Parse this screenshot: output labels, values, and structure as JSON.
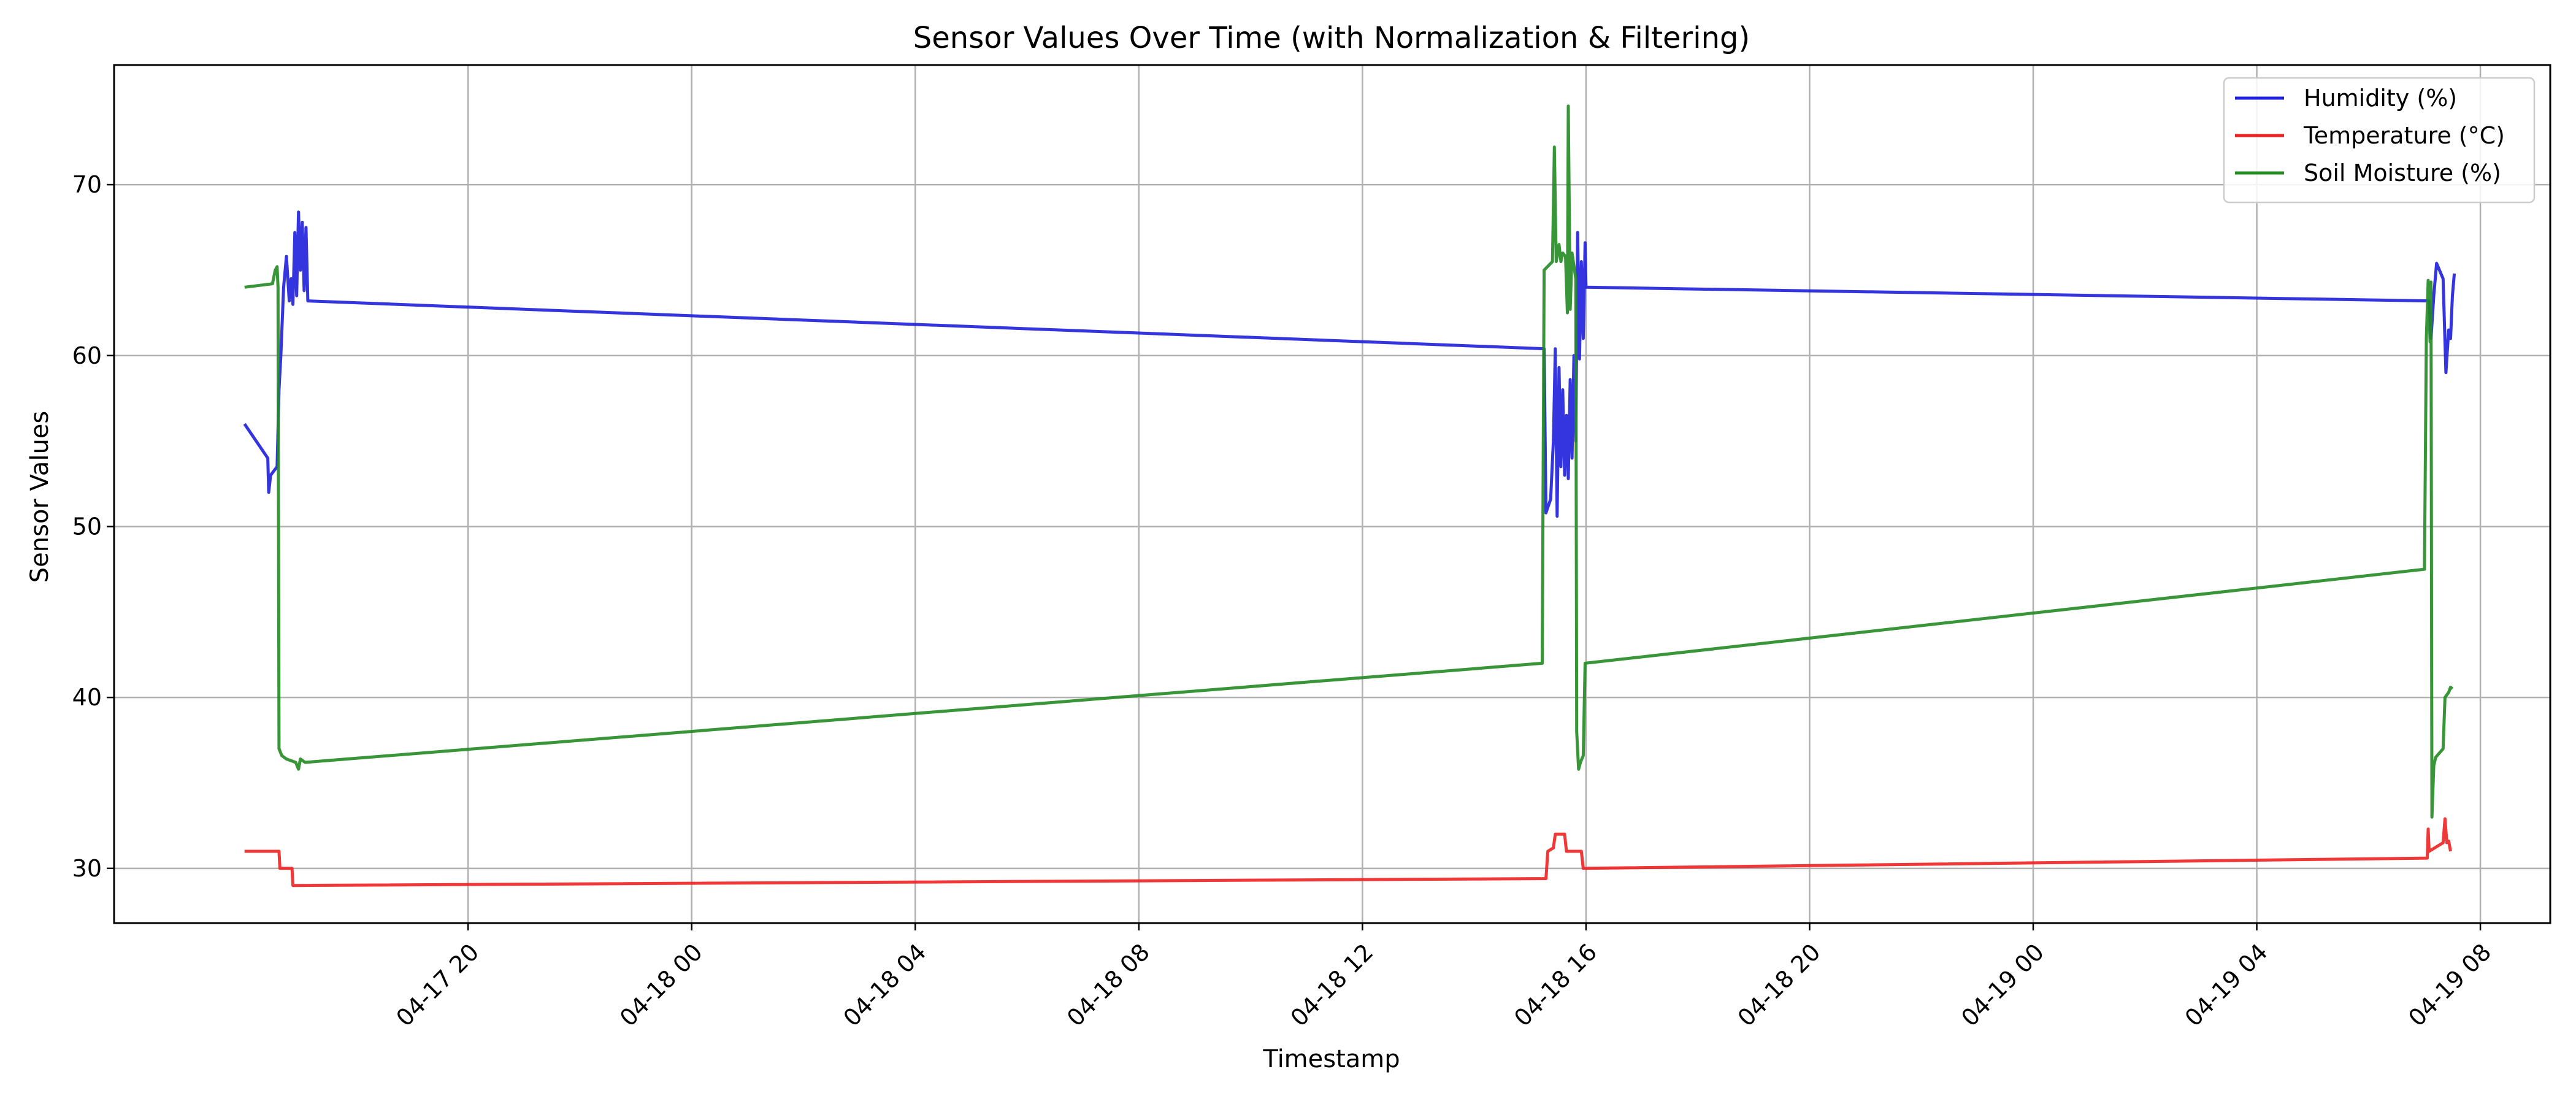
{
  "chart_data": {
    "type": "line",
    "title": "Sensor Values Over Time (with Normalization & Filtering)",
    "xlabel": "Timestamp",
    "ylabel": "Sensor Values",
    "xlim": [
      "2024-04-17 13:40",
      "2024-04-19 09:15"
    ],
    "ylim": [
      26.8,
      77
    ],
    "x_ticks": [
      "04-17 20",
      "04-18 00",
      "04-18 04",
      "04-18 08",
      "04-18 12",
      "04-18 16",
      "04-18 20",
      "04-19 00",
      "04-19 04",
      "04-19 08"
    ],
    "y_ticks": [
      30,
      40,
      50,
      60,
      70
    ],
    "grid": true,
    "legend_position": "top-right",
    "series": [
      {
        "name": "Humidity (%)",
        "color": "#1f1fdd",
        "points": [
          [
            "2024-04-17 16:00",
            56.0
          ],
          [
            "2024-04-17 16:25",
            54.0
          ],
          [
            "2024-04-17 16:26",
            52.0
          ],
          [
            "2024-04-17 16:28",
            53.0
          ],
          [
            "2024-04-17 16:35",
            53.5
          ],
          [
            "2024-04-17 16:37",
            58.0
          ],
          [
            "2024-04-17 16:39",
            60.0
          ],
          [
            "2024-04-17 16:42",
            64.0
          ],
          [
            "2024-04-17 16:45",
            65.8
          ],
          [
            "2024-04-17 16:48",
            63.2
          ],
          [
            "2024-04-17 16:50",
            64.5
          ],
          [
            "2024-04-17 16:52",
            63.0
          ],
          [
            "2024-04-17 16:54",
            67.2
          ],
          [
            "2024-04-17 16:56",
            63.5
          ],
          [
            "2024-04-17 16:58",
            68.4
          ],
          [
            "2024-04-17 17:00",
            65.0
          ],
          [
            "2024-04-17 17:02",
            67.8
          ],
          [
            "2024-04-17 17:04",
            63.8
          ],
          [
            "2024-04-17 17:06",
            67.5
          ],
          [
            "2024-04-17 17:08",
            63.2
          ],
          [
            "2024-04-18 15:15",
            60.4
          ],
          [
            "2024-04-18 15:17",
            50.8
          ],
          [
            "2024-04-18 15:22",
            51.6
          ],
          [
            "2024-04-18 15:25",
            55.0
          ],
          [
            "2024-04-18 15:27",
            60.4
          ],
          [
            "2024-04-18 15:29",
            50.6
          ],
          [
            "2024-04-18 15:31",
            59.3
          ],
          [
            "2024-04-18 15:33",
            53.5
          ],
          [
            "2024-04-18 15:35",
            58.0
          ],
          [
            "2024-04-18 15:37",
            53.0
          ],
          [
            "2024-04-18 15:39",
            56.5
          ],
          [
            "2024-04-18 15:41",
            52.8
          ],
          [
            "2024-04-18 15:43",
            58.6
          ],
          [
            "2024-04-18 15:45",
            54.0
          ],
          [
            "2024-04-18 15:47",
            60.0
          ],
          [
            "2024-04-18 15:49",
            55.0
          ],
          [
            "2024-04-18 15:51",
            67.2
          ],
          [
            "2024-04-18 15:53",
            59.8
          ],
          [
            "2024-04-18 15:55",
            65.5
          ],
          [
            "2024-04-18 15:57",
            61.0
          ],
          [
            "2024-04-18 15:59",
            66.6
          ],
          [
            "2024-04-18 16:00",
            64.0
          ],
          [
            "2024-04-19 07:05",
            63.2
          ],
          [
            "2024-04-19 07:07",
            61.0
          ],
          [
            "2024-04-19 07:10",
            63.5
          ],
          [
            "2024-04-19 07:13",
            65.4
          ],
          [
            "2024-04-19 07:20",
            64.5
          ],
          [
            "2024-04-19 07:23",
            59.0
          ],
          [
            "2024-04-19 07:26",
            61.5
          ],
          [
            "2024-04-19 07:28",
            61.0
          ],
          [
            "2024-04-19 07:30",
            63.5
          ],
          [
            "2024-04-19 07:32",
            64.8
          ]
        ]
      },
      {
        "name": "Temperature (°C)",
        "color": "#ee2222",
        "points": [
          [
            "2024-04-17 16:00",
            31.0
          ],
          [
            "2024-04-17 16:37",
            31.0
          ],
          [
            "2024-04-17 16:38",
            30.0
          ],
          [
            "2024-04-17 16:51",
            30.0
          ],
          [
            "2024-04-17 16:52",
            29.0
          ],
          [
            "2024-04-18 15:17",
            29.4
          ],
          [
            "2024-04-18 15:19",
            31.0
          ],
          [
            "2024-04-18 15:25",
            31.2
          ],
          [
            "2024-04-18 15:27",
            32.0
          ],
          [
            "2024-04-18 15:37",
            32.0
          ],
          [
            "2024-04-18 15:39",
            31.0
          ],
          [
            "2024-04-18 15:55",
            31.0
          ],
          [
            "2024-04-18 15:57",
            30.0
          ],
          [
            "2024-04-19 07:03",
            30.6
          ],
          [
            "2024-04-19 07:04",
            32.3
          ],
          [
            "2024-04-19 07:05",
            31.0
          ],
          [
            "2024-04-19 07:20",
            31.5
          ],
          [
            "2024-04-19 07:22",
            32.9
          ],
          [
            "2024-04-19 07:24",
            31.5
          ],
          [
            "2024-04-19 07:26",
            31.6
          ],
          [
            "2024-04-19 07:28",
            31.0
          ]
        ]
      },
      {
        "name": "Soil Moisture (%)",
        "color": "#228b22",
        "points": [
          [
            "2024-04-17 16:00",
            64.0
          ],
          [
            "2024-04-17 16:30",
            64.2
          ],
          [
            "2024-04-17 16:33",
            65.0
          ],
          [
            "2024-04-17 16:35",
            65.2
          ],
          [
            "2024-04-17 16:36",
            64.0
          ],
          [
            "2024-04-17 16:37",
            37.0
          ],
          [
            "2024-04-17 16:40",
            36.6
          ],
          [
            "2024-04-17 16:45",
            36.4
          ],
          [
            "2024-04-17 16:55",
            36.2
          ],
          [
            "2024-04-17 16:58",
            35.8
          ],
          [
            "2024-04-17 17:00",
            36.4
          ],
          [
            "2024-04-17 17:05",
            36.2
          ],
          [
            "2024-04-18 15:13",
            42.0
          ],
          [
            "2024-04-18 15:15",
            65.0
          ],
          [
            "2024-04-18 15:24",
            65.5
          ],
          [
            "2024-04-18 15:26",
            72.2
          ],
          [
            "2024-04-18 15:28",
            65.5
          ],
          [
            "2024-04-18 15:31",
            66.5
          ],
          [
            "2024-04-18 15:33",
            65.5
          ],
          [
            "2024-04-18 15:35",
            66.0
          ],
          [
            "2024-04-18 15:38",
            65.8
          ],
          [
            "2024-04-18 15:40",
            62.5
          ],
          [
            "2024-04-18 15:41",
            74.6
          ],
          [
            "2024-04-18 15:43",
            62.7
          ],
          [
            "2024-04-18 15:45",
            66.0
          ],
          [
            "2024-04-18 15:49",
            64.5
          ],
          [
            "2024-04-18 15:50",
            38.0
          ],
          [
            "2024-04-18 15:52",
            35.8
          ],
          [
            "2024-04-18 15:54",
            36.2
          ],
          [
            "2024-04-18 15:57",
            36.6
          ],
          [
            "2024-04-18 15:59",
            42.0
          ],
          [
            "2024-04-19 07:00",
            47.5
          ],
          [
            "2024-04-19 07:02",
            61.0
          ],
          [
            "2024-04-19 07:04",
            64.4
          ],
          [
            "2024-04-19 07:06",
            60.8
          ],
          [
            "2024-04-19 07:07",
            64.3
          ],
          [
            "2024-04-19 07:08",
            33.0
          ],
          [
            "2024-04-19 07:10",
            36.0
          ],
          [
            "2024-04-19 07:12",
            36.5
          ],
          [
            "2024-04-19 07:20",
            37.0
          ],
          [
            "2024-04-19 07:22",
            40.0
          ],
          [
            "2024-04-19 07:26",
            40.3
          ],
          [
            "2024-04-19 07:28",
            40.6
          ],
          [
            "2024-04-19 07:30",
            40.5
          ]
        ]
      }
    ]
  }
}
